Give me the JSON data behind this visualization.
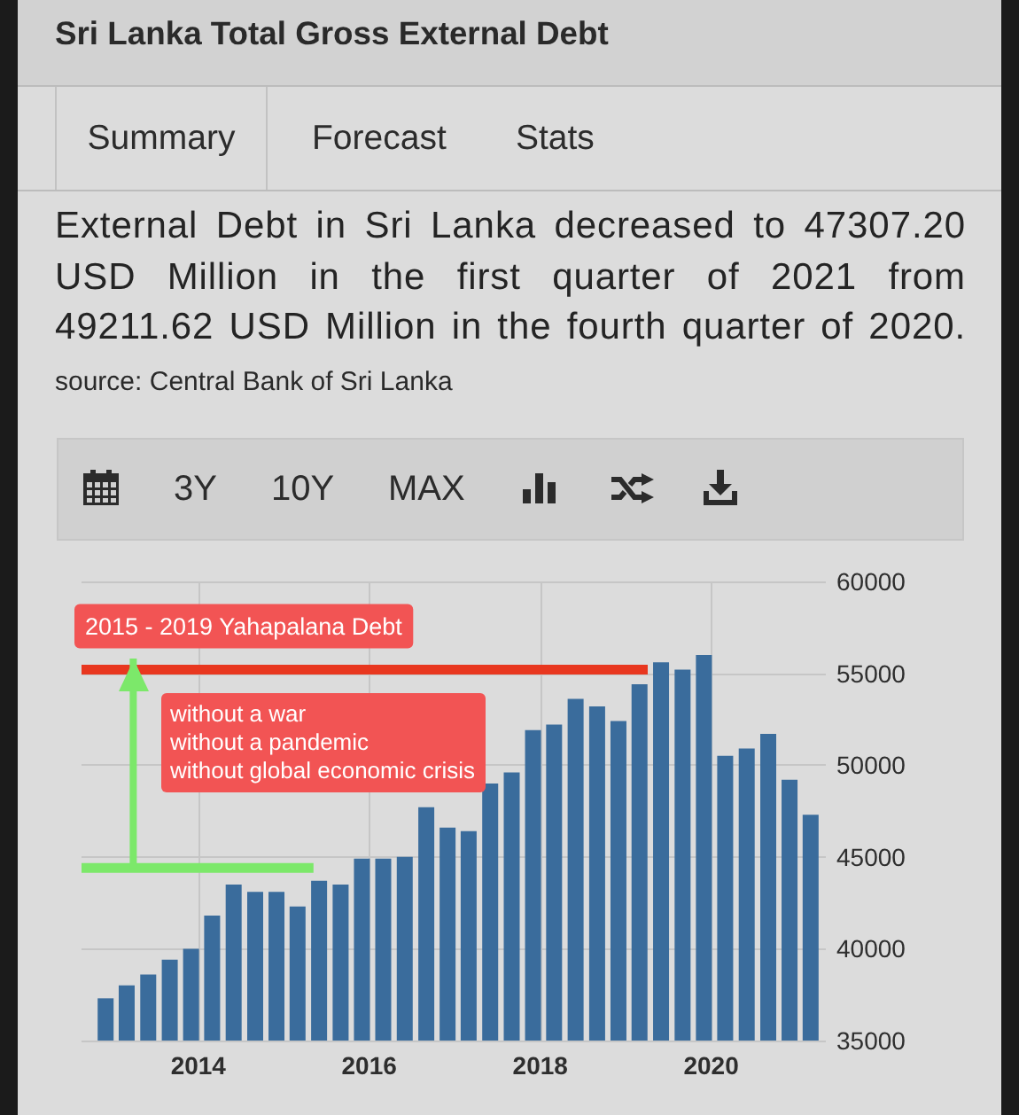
{
  "chart_data": {
    "type": "bar",
    "title": "Sri Lanka Total Gross External Debt",
    "subtitle": "External Debt in Sri Lanka decreased to 47307.20 USD Million in the first quarter of 2021 from 49211.62 USD Million in the fourth quarter of 2020.",
    "annotations": [
      "source: Central Bank of Sri Lanka",
      "Summary",
      "Forecast",
      "Stats",
      "3Y",
      "10Y",
      "MAX",
      "without a war\nwithout a pandemic\nwithout global economic crisis"
    ],
    "x": [
      "2012-12",
      "2013-03",
      "2013-06",
      "2013-09",
      "2013-12",
      "2014-03",
      "2014-06",
      "2014-09",
      "2014-12",
      "2015-03",
      "2015-06",
      "2015-09",
      "2015-12",
      "2016-03",
      "2016-06",
      "2016-09",
      "2016-12",
      "2017-03",
      "2017-06",
      "2017-09",
      "2017-12",
      "2018-03",
      "2018-06",
      "2018-09",
      "2018-12",
      "2019-03",
      "2019-06",
      "2019-09",
      "2019-12",
      "2020-03",
      "2020-06",
      "2020-09",
      "2020-12",
      "2021-03"
    ],
    "series": [
      {
        "color": "#3a6c9c",
        "values": [
          37300,
          38000,
          38600,
          39400,
          40000,
          41800,
          43500,
          43100,
          43100,
          42300,
          43700,
          43500,
          44900,
          44900,
          45000,
          47700,
          46600,
          46400,
          49000,
          49600,
          51900,
          52200,
          53600,
          53200,
          52400,
          54400,
          55600,
          55200,
          56000,
          50500,
          50900,
          51700,
          49200,
          47300
        ]
      },
      {
        "type": "line",
        "name": "2015 - 2019 Yahapalana Debt",
        "color": "#e8371f",
        "x": [
          "2012-08-20",
          "2019-04-05"
        ],
        "values": [
          55200,
          55200
        ]
      },
      {
        "type": "line",
        "color": "#7ce86a",
        "x": [
          "2012-08-20",
          "2015-05-08"
        ],
        "values": [
          44400,
          44400
        ]
      },
      {
        "type": "line",
        "color": "#7ce86a",
        "x": [
          "2013-03-29",
          "2013-03-29"
        ],
        "values": [
          44400,
          55800
        ]
      }
    ],
    "xlim": [
      "2012-08-20",
      "2021-05-05"
    ],
    "xticks": [
      "2014",
      "2016",
      "2018",
      "2020"
    ],
    "ylim": [
      35000,
      60000
    ],
    "yticks": [
      35000,
      40000,
      45000,
      50000,
      55000,
      60000
    ],
    "grid": true
  }
}
